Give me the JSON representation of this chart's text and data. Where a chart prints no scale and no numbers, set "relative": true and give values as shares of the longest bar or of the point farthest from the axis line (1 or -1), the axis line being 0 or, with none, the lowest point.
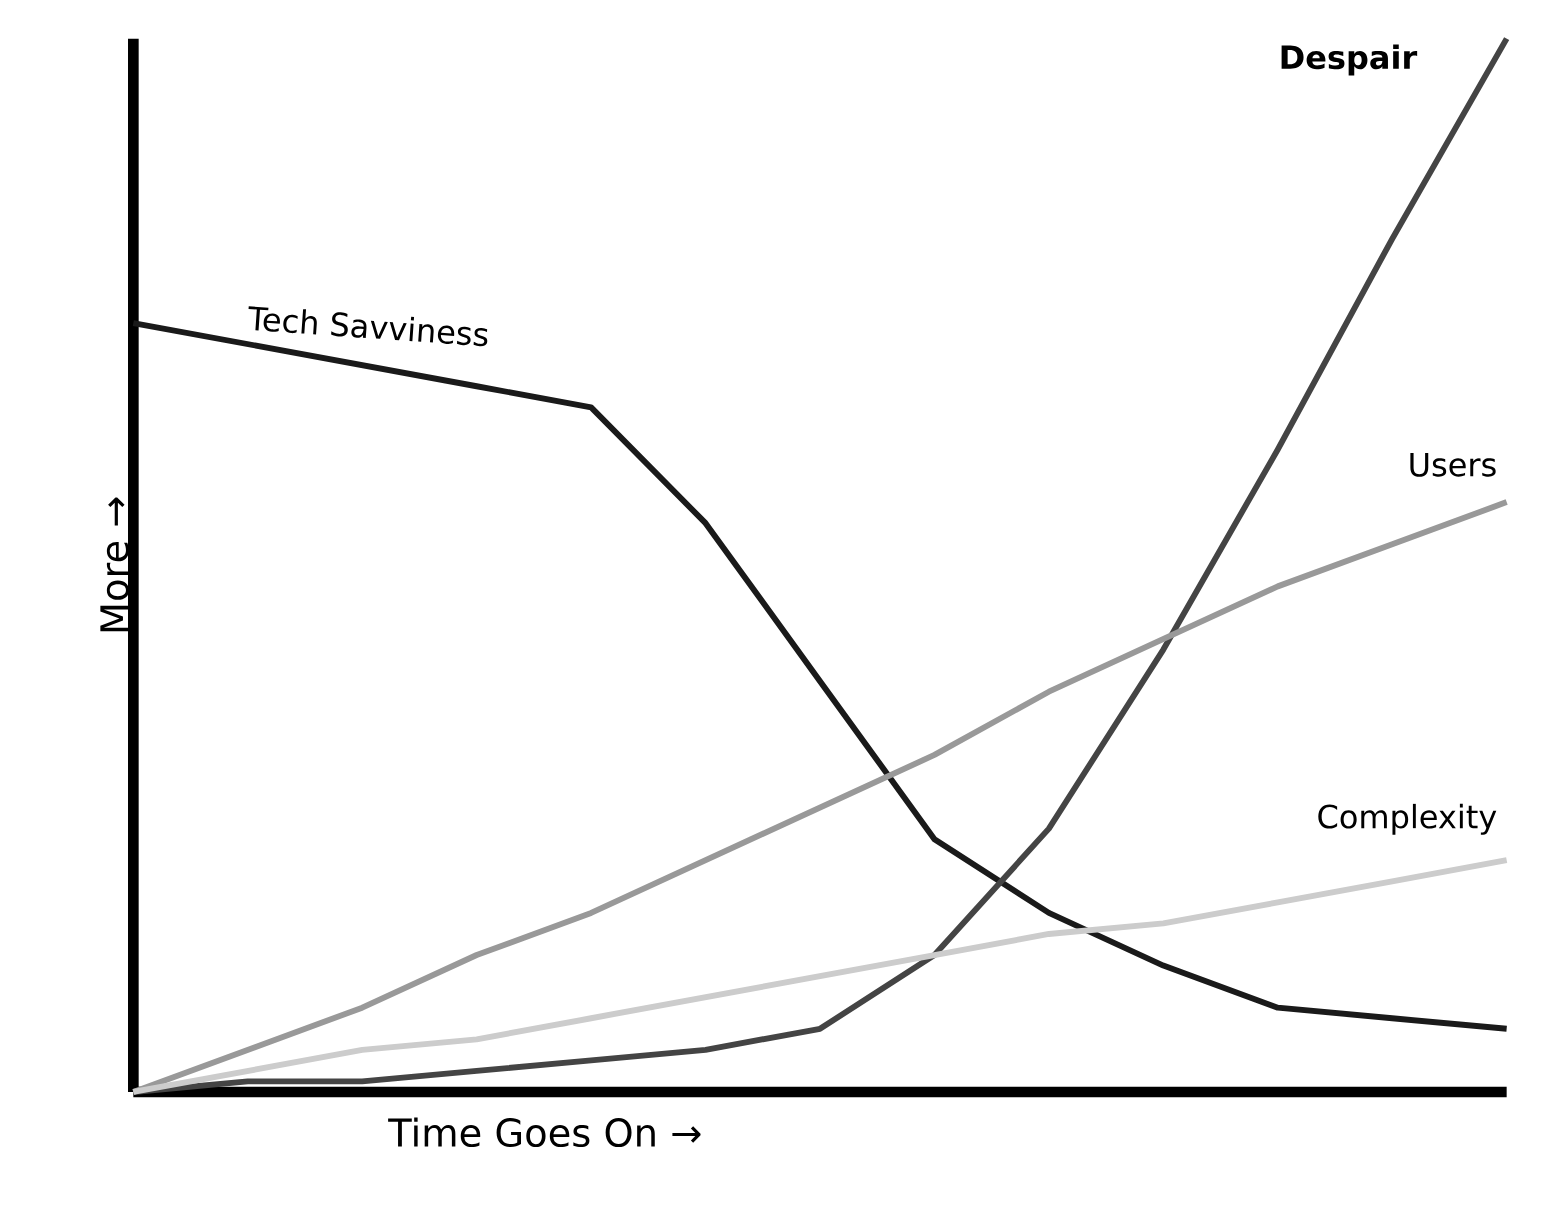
{
  "chart_data": {
    "type": "line",
    "relative": true,
    "xlabel": "Time Goes On →",
    "ylabel": "More →",
    "categories": [
      null,
      null,
      null,
      null,
      null,
      null,
      null,
      null,
      null,
      null,
      null,
      null,
      null
    ],
    "series": [
      {
        "name": "Tech Savviness",
        "color": "#1a1a1a",
        "values": [
          0.73,
          0.71,
          0.69,
          0.67,
          0.65,
          0.54,
          0.39,
          0.24,
          0.17,
          0.12,
          0.08,
          0.07,
          0.06
        ]
      },
      {
        "name": "Despair",
        "color": "#444444",
        "values": [
          0,
          0.01,
          0.01,
          0.02,
          0.03,
          0.04,
          0.06,
          0.13,
          0.25,
          0.42,
          0.61,
          0.81,
          1
        ]
      },
      {
        "name": "Users",
        "color": "#999999",
        "values": [
          0,
          0.04,
          0.08,
          0.13,
          0.17,
          0.22,
          0.27,
          0.32,
          0.38,
          0.43,
          0.48,
          0.52,
          0.56
        ]
      },
      {
        "name": "Complexity",
        "color": "#cccccc",
        "values": [
          0,
          0.02,
          0.04,
          0.05,
          0.07,
          0.09,
          0.11,
          0.13,
          0.15,
          0.16,
          0.18,
          0.2,
          0.22
        ]
      }
    ],
    "marker": "none",
    "line_style": "solid"
  }
}
